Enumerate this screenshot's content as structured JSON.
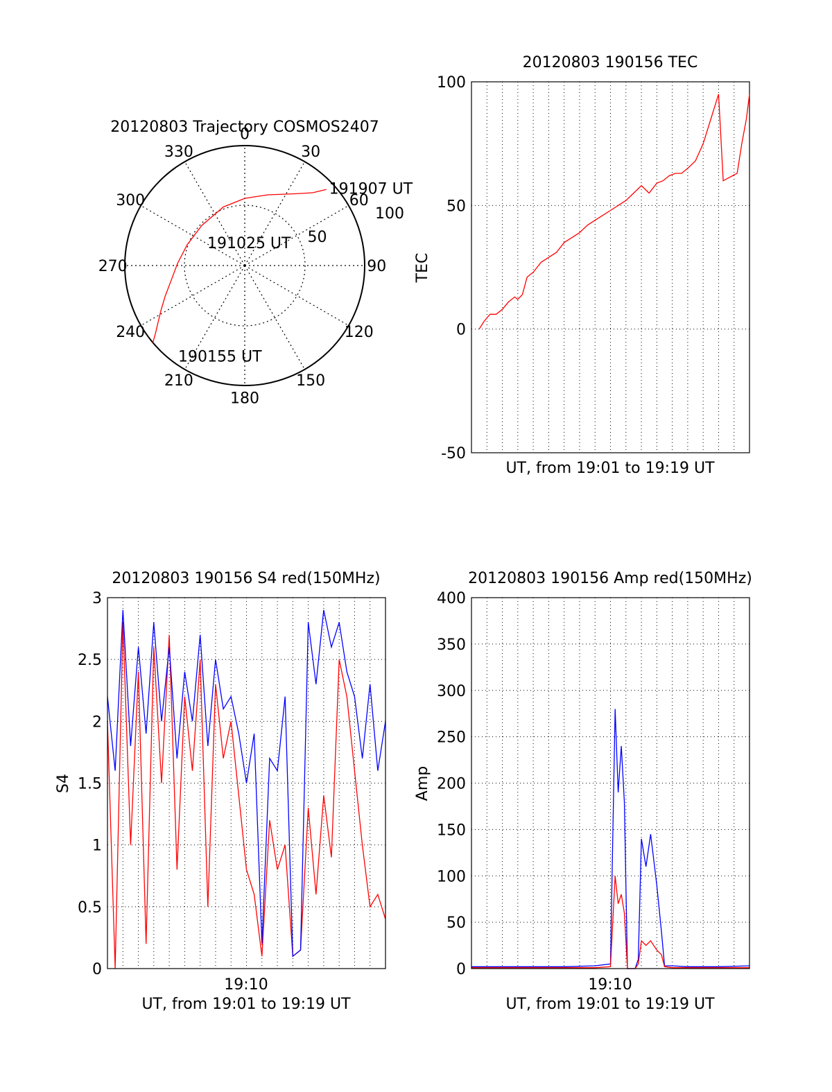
{
  "chart_data": [
    {
      "type": "polar",
      "title": "20120803 Trajectory COSMOS2407",
      "angle_labels": [
        "0",
        "30",
        "60",
        "90",
        "120",
        "150",
        "180",
        "210",
        "240",
        "270",
        "300",
        "330"
      ],
      "angle_values": [
        0,
        30,
        60,
        90,
        120,
        150,
        180,
        210,
        240,
        270,
        300,
        330
      ],
      "radius_labels": [
        "50",
        "100"
      ],
      "radius_values": [
        50,
        100
      ],
      "series": [
        {
          "color": "#ff0000",
          "azimuth": [
            230,
            233,
            237,
            242,
            249,
            258,
            272,
            290,
            313,
            340,
            0,
            18,
            35,
            43,
            47
          ],
          "radius": [
            100,
            93,
            86,
            79,
            71,
            63,
            56,
            51,
            49,
            52,
            56,
            62,
            73,
            83,
            93
          ]
        }
      ],
      "annotations": [
        {
          "text": "191907 UT",
          "azimuth": 47,
          "radius": 93
        },
        {
          "text": "191025 UT",
          "azimuth": 298,
          "radius": 38
        },
        {
          "text": "190155 UT",
          "azimuth": 217,
          "radius": 96
        }
      ]
    },
    {
      "type": "line",
      "title": "20120803 190156 TEC",
      "ylabel": "TEC",
      "xlabel": "UT, from 19:01 to 19:19 UT",
      "ylim": [
        -50,
        100
      ],
      "xlim": [
        0,
        18
      ],
      "yticks": [
        -50,
        0,
        50,
        100
      ],
      "grid": true,
      "series": [
        {
          "color": "#ff0000",
          "x": [
            0.5,
            0.8,
            1.2,
            1.6,
            2.0,
            2.4,
            2.8,
            3.0,
            3.3,
            3.6,
            4.0,
            4.5,
            5.0,
            5.5,
            6.0,
            6.5,
            7.0,
            7.5,
            8.0,
            8.5,
            9.0,
            9.5,
            10.0,
            10.5,
            11.0,
            11.5,
            12.0,
            12.4,
            12.8,
            13.2,
            13.6,
            14.0,
            14.5,
            15.0,
            15.5,
            16.0,
            16.3,
            16.6,
            16.9,
            17.2,
            17.5,
            17.8,
            18.0
          ],
          "y": [
            0,
            3,
            6,
            6,
            8,
            11,
            13,
            12,
            14,
            21,
            23,
            27,
            29,
            31,
            35,
            37,
            39,
            42,
            44,
            46,
            48,
            50,
            52,
            55,
            58,
            55,
            59,
            60,
            62,
            63,
            63,
            65,
            68,
            75,
            85,
            95,
            60,
            61,
            62,
            63,
            75,
            85,
            95
          ]
        }
      ]
    },
    {
      "type": "line",
      "title": "20120803 190156 S4 red(150MHz)",
      "ylabel": "S4",
      "xlabel": "UT, from 19:01 to 19:19 UT",
      "xtick_label": "19:10",
      "ylim": [
        0,
        3
      ],
      "xlim": [
        0,
        18
      ],
      "yticks": [
        0,
        0.5,
        1,
        1.5,
        2,
        2.5,
        3
      ],
      "grid": true,
      "series": [
        {
          "color": "#ff0000",
          "x": [
            0.0,
            0.5,
            1.0,
            1.5,
            2.0,
            2.5,
            3.0,
            3.5,
            4.0,
            4.5,
            5.0,
            5.5,
            6.0,
            6.5,
            7.0,
            7.5,
            8.0,
            8.5,
            9.0,
            9.5,
            10.0,
            10.5,
            11.0,
            11.5,
            12.0,
            12.5,
            13.0,
            13.5,
            14.0,
            14.5,
            15.0,
            15.5,
            16.0,
            16.5,
            17.0,
            17.5,
            18.0
          ],
          "y": [
            2.0,
            0.0,
            2.8,
            1.0,
            2.4,
            0.2,
            2.6,
            1.5,
            2.7,
            0.8,
            2.2,
            1.6,
            2.5,
            0.5,
            2.3,
            1.7,
            2.0,
            1.4,
            0.8,
            0.6,
            0.1,
            1.2,
            0.8,
            1.0,
            0.1,
            0.15,
            1.3,
            0.6,
            1.4,
            0.9,
            2.5,
            2.2,
            1.6,
            1.0,
            0.5,
            0.6,
            0.4
          ]
        },
        {
          "color": "#0000ff",
          "x": [
            0.0,
            0.5,
            1.0,
            1.5,
            2.0,
            2.5,
            3.0,
            3.5,
            4.0,
            4.5,
            5.0,
            5.5,
            6.0,
            6.5,
            7.0,
            7.5,
            8.0,
            8.5,
            9.0,
            9.5,
            10.0,
            10.5,
            11.0,
            11.5,
            12.0,
            12.5,
            13.0,
            13.5,
            14.0,
            14.5,
            15.0,
            15.5,
            16.0,
            16.5,
            17.0,
            17.5,
            18.0
          ],
          "y": [
            2.2,
            1.6,
            2.9,
            1.8,
            2.6,
            1.9,
            2.8,
            2.0,
            2.6,
            1.7,
            2.4,
            2.0,
            2.7,
            1.8,
            2.5,
            2.1,
            2.2,
            1.9,
            1.5,
            1.9,
            0.2,
            1.7,
            1.6,
            2.2,
            0.1,
            0.15,
            2.8,
            2.3,
            2.9,
            2.6,
            2.8,
            2.4,
            2.2,
            1.7,
            2.3,
            1.6,
            2.0
          ]
        }
      ]
    },
    {
      "type": "line",
      "title": "20120803 190156 Amp red(150MHz)",
      "ylabel": "Amp",
      "xlabel": "UT, from 19:01 to 19:19 UT",
      "xtick_label": "19:10",
      "ylim": [
        0,
        400
      ],
      "xlim": [
        0,
        18
      ],
      "yticks": [
        0,
        50,
        100,
        150,
        200,
        250,
        300,
        350,
        400
      ],
      "grid": true,
      "series": [
        {
          "color": "#0000ff",
          "x": [
            0.0,
            2.0,
            4.0,
            6.0,
            8.0,
            9.0,
            9.3,
            9.5,
            9.7,
            9.9,
            10.1,
            10.3,
            10.6,
            10.8,
            11.0,
            11.3,
            11.6,
            12.0,
            12.3,
            12.5,
            13.0,
            14.0,
            16.0,
            18.0
          ],
          "y": [
            2,
            2,
            2,
            2,
            3,
            5,
            280,
            190,
            240,
            180,
            0,
            0,
            0,
            10,
            140,
            110,
            145,
            90,
            40,
            3,
            3,
            2,
            2,
            3
          ]
        },
        {
          "color": "#ff0000",
          "x": [
            0.0,
            2.0,
            4.0,
            6.0,
            8.0,
            9.0,
            9.3,
            9.5,
            9.7,
            9.9,
            10.1,
            10.3,
            10.6,
            10.8,
            11.0,
            11.3,
            11.6,
            12.0,
            12.3,
            12.5,
            13.0,
            14.0,
            16.0,
            18.0
          ],
          "y": [
            1,
            1,
            1,
            1,
            1,
            2,
            100,
            70,
            80,
            60,
            0,
            0,
            0,
            5,
            30,
            25,
            30,
            20,
            15,
            2,
            1,
            1,
            1,
            1
          ]
        }
      ]
    }
  ]
}
